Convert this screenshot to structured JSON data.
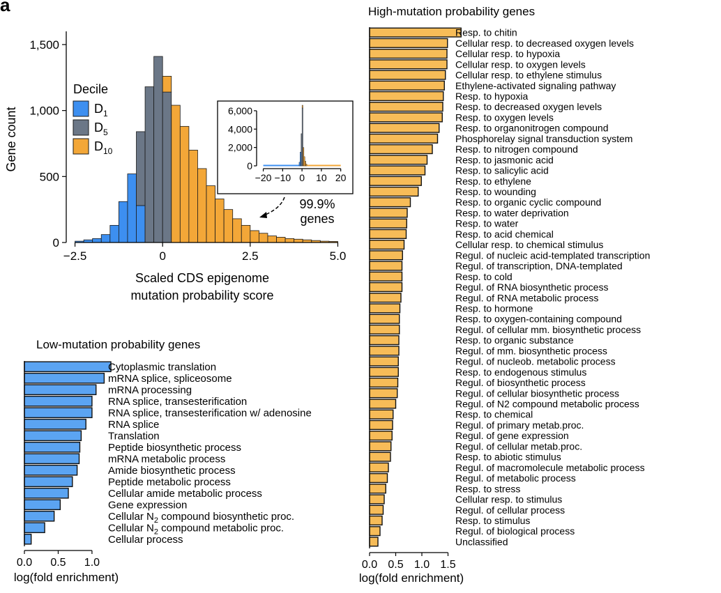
{
  "panel_label": "a",
  "chart_data": [
    {
      "type": "bar",
      "subtype": "histogram",
      "xlabel_lines": [
        "Scaled CDS epigenome",
        "mutation probability score"
      ],
      "ylabel": "Gene count",
      "xlim": [
        -2.75,
        5.15
      ],
      "ylim": [
        0,
        1600
      ],
      "xticks": [
        -2.5,
        0,
        2.5,
        5.0
      ],
      "xtick_labels": [
        "−2.5",
        "0",
        "2.5",
        "5.0"
      ],
      "yticks": [
        0,
        500,
        1000,
        1500
      ],
      "ytick_labels": [
        "0",
        "500",
        "1,000",
        "1,500"
      ],
      "legend": {
        "title": "Decile",
        "position": "upper-left",
        "entries": [
          {
            "base": "D",
            "sub": "1",
            "color": "#3d8ff0"
          },
          {
            "base": "D",
            "sub": "5",
            "color": "#6b7787"
          },
          {
            "base": "D",
            "sub": "10",
            "color": "#f3a738"
          }
        ]
      },
      "bin_width": 0.25,
      "bins": [
        {
          "x0": -2.5,
          "counts": {
            "D1": 10
          }
        },
        {
          "x0": -2.25,
          "counts": {
            "D1": 20
          }
        },
        {
          "x0": -2.0,
          "counts": {
            "D1": 30
          }
        },
        {
          "x0": -1.75,
          "counts": {
            "D1": 60
          }
        },
        {
          "x0": -1.5,
          "counts": {
            "D1": 130
          }
        },
        {
          "x0": -1.25,
          "counts": {
            "D1": 310
          }
        },
        {
          "x0": -1.0,
          "counts": {
            "D1": 520
          }
        },
        {
          "x0": -0.75,
          "counts": {
            "D1": 280,
            "D5": 560
          }
        },
        {
          "x0": -0.5,
          "counts": {
            "D5": 1180
          }
        },
        {
          "x0": -0.25,
          "counts": {
            "D5": 1410
          }
        },
        {
          "x0": 0.0,
          "counts": {
            "D5": 1140,
            "D10": 120
          }
        },
        {
          "x0": 0.25,
          "counts": {
            "D10": 1040
          }
        },
        {
          "x0": 0.5,
          "counts": {
            "D10": 880
          }
        },
        {
          "x0": 0.75,
          "counts": {
            "D10": 700
          }
        },
        {
          "x0": 1.0,
          "counts": {
            "D10": 560
          }
        },
        {
          "x0": 1.25,
          "counts": {
            "D10": 430
          }
        },
        {
          "x0": 1.5,
          "counts": {
            "D10": 330
          }
        },
        {
          "x0": 1.75,
          "counts": {
            "D10": 250
          }
        },
        {
          "x0": 2.0,
          "counts": {
            "D10": 180
          }
        },
        {
          "x0": 2.25,
          "counts": {
            "D10": 130
          }
        },
        {
          "x0": 2.5,
          "counts": {
            "D10": 90
          }
        },
        {
          "x0": 2.75,
          "counts": {
            "D10": 70
          }
        },
        {
          "x0": 3.0,
          "counts": {
            "D10": 50
          }
        },
        {
          "x0": 3.25,
          "counts": {
            "D10": 40
          }
        },
        {
          "x0": 3.5,
          "counts": {
            "D10": 30
          }
        },
        {
          "x0": 3.75,
          "counts": {
            "D10": 25
          }
        },
        {
          "x0": 4.0,
          "counts": {
            "D10": 20
          }
        },
        {
          "x0": 4.25,
          "counts": {
            "D10": 15
          }
        },
        {
          "x0": 4.5,
          "counts": {
            "D10": 10
          }
        },
        {
          "x0": 4.75,
          "counts": {
            "D10": 8
          }
        }
      ],
      "annotation": {
        "lines": [
          "99.9%",
          "genes"
        ]
      },
      "inset": {
        "xlim": [
          -22,
          23
        ],
        "ylim": [
          0,
          6600
        ],
        "xticks": [
          -20,
          -10,
          0,
          10,
          20
        ],
        "xtick_labels": [
          "−20",
          "−10",
          "0",
          "10",
          "20"
        ],
        "yticks": [
          0,
          2000,
          4000,
          6000
        ],
        "ytick_labels": [
          "0",
          "2,000",
          "4,000",
          "6,000"
        ],
        "bin_width": 0.5,
        "bins": [
          {
            "x0": -1.5,
            "counts": {
              "D1": 400
            }
          },
          {
            "x0": -1.0,
            "counts": {
              "D1": 1500
            }
          },
          {
            "x0": -0.5,
            "counts": {
              "D5": 3500
            }
          },
          {
            "x0": 0.0,
            "counts": {
              "D5": 6300,
              "D10": 300
            }
          },
          {
            "x0": 0.5,
            "counts": {
              "D10": 2000
            }
          },
          {
            "x0": 1.0,
            "counts": {
              "D10": 1000
            }
          },
          {
            "x0": 1.5,
            "counts": {
              "D10": 500
            }
          },
          {
            "x0": 2.0,
            "counts": {
              "D10": 200
            }
          }
        ],
        "tail_lines": [
          {
            "decile": "D1",
            "range": [
              -20,
              0
            ]
          },
          {
            "decile": "D10",
            "range": [
              0,
              20
            ]
          }
        ]
      }
    },
    {
      "type": "bar",
      "orientation": "horizontal",
      "title": "Low-mutation probability genes",
      "xlabel": "log(fold enrichment)",
      "xlim": [
        0,
        1.3
      ],
      "xticks": [
        0.0,
        0.5,
        1.0
      ],
      "xtick_labels": [
        "0.0",
        "0.5",
        "1.0"
      ],
      "color": "#5ba4f2",
      "categories": [
        "Cytoplasmic translation",
        "mRNA splice, spliceosome",
        "mRNA processing",
        "RNA splice, transesterification",
        "RNA splice, transesterification w/ adenosine",
        "RNA splice",
        "Translation",
        "Peptide biosynthetic process",
        "mRNA metabolic process",
        "Amide biosynthetic process",
        "Peptide metabolic process",
        "Cellular amide metabolic process",
        "Gene expression",
        "Cellular N2 compound biosynthetic proc.",
        "Cellular N2 compound metabolic proc.",
        "Cellular process"
      ],
      "category_subscripts": {
        "13": {
          "before": "Cellular N",
          "sub": "2",
          "after": " compound biosynthetic proc."
        },
        "14": {
          "before": "Cellular N",
          "sub": "2",
          "after": " compound metabolic proc."
        }
      },
      "values": [
        1.28,
        1.18,
        1.06,
        1.0,
        1.0,
        0.91,
        0.84,
        0.82,
        0.81,
        0.78,
        0.71,
        0.65,
        0.53,
        0.44,
        0.3,
        0.1
      ]
    },
    {
      "type": "bar",
      "orientation": "horizontal",
      "title": "High-mutation probability genes",
      "xlabel": "log(fold enrichment)",
      "xlim": [
        0,
        1.8
      ],
      "xticks": [
        0.0,
        0.5,
        1.0,
        1.5
      ],
      "xtick_labels": [
        "0.0",
        "0.5",
        "1.0",
        "1.5"
      ],
      "color": "#f7bc58",
      "categories": [
        "Resp. to chitin",
        "Cellular resp. to decreased oxygen levels",
        "Cellular resp. to hypoxia",
        "Cellular resp. to oxygen levels",
        "Cellular resp. to ethylene stimulus",
        "Ethylene-activated signaling pathway",
        "Resp. to hypoxia",
        "Resp. to decreased oxygen levels",
        "Resp. to oxygen levels",
        "Resp. to organonitrogen compound",
        "Phosphorelay signal transduction system",
        "Resp. to nitrogen compound",
        "Resp. to jasmonic acid",
        "Resp. to salicylic acid",
        "Resp. to ethylene",
        "Resp. to wounding",
        "Resp. to organic cyclic compound",
        "Resp. to water deprivation",
        "Resp. to water",
        "Resp. to acid chemical",
        "Cellular resp. to chemical stimulus",
        "Regul. of nucleic acid-templated transcription",
        "Regul. of transcription, DNA-templated",
        "Resp. to cold",
        "Regul. of RNA biosynthetic process",
        "Regul. of RNA metabolic process",
        "Resp. to hormone",
        "Resp. to oxygen-containing compound",
        "Regul. of cellular mm. biosynthetic process",
        "Resp. to organic substance",
        "Regul. of mm. biosynthetic process",
        "Regul. of nucleob. metabolic process",
        "Resp. to endogenous stimulus",
        "Regul. of biosynthetic process",
        "Regul. of cellular biosynthetic process",
        "Regul. of N2 compound metabolic process",
        "Resp. to chemical",
        "Regul. of primary metab.proc.",
        "Regul. of gene expression",
        "Regul. of cellular metab.proc.",
        "Resp. to abiotic stimulus",
        "Regul. of macromolecule metabolic process",
        "Regul. of metabolic process",
        "Resp. to stress",
        "Cellular resp. to stimulus",
        "Regul. of cellular process",
        "Resp. to stimulus",
        "Regul. of biological process",
        "Unclassified"
      ],
      "values": [
        1.75,
        1.49,
        1.48,
        1.48,
        1.45,
        1.43,
        1.41,
        1.4,
        1.39,
        1.33,
        1.3,
        1.2,
        1.1,
        1.06,
        0.99,
        0.93,
        0.78,
        0.72,
        0.71,
        0.7,
        0.66,
        0.63,
        0.62,
        0.62,
        0.62,
        0.6,
        0.58,
        0.57,
        0.57,
        0.56,
        0.56,
        0.55,
        0.55,
        0.54,
        0.53,
        0.5,
        0.45,
        0.44,
        0.43,
        0.41,
        0.4,
        0.36,
        0.34,
        0.31,
        0.28,
        0.26,
        0.24,
        0.2,
        0.16
      ]
    }
  ]
}
